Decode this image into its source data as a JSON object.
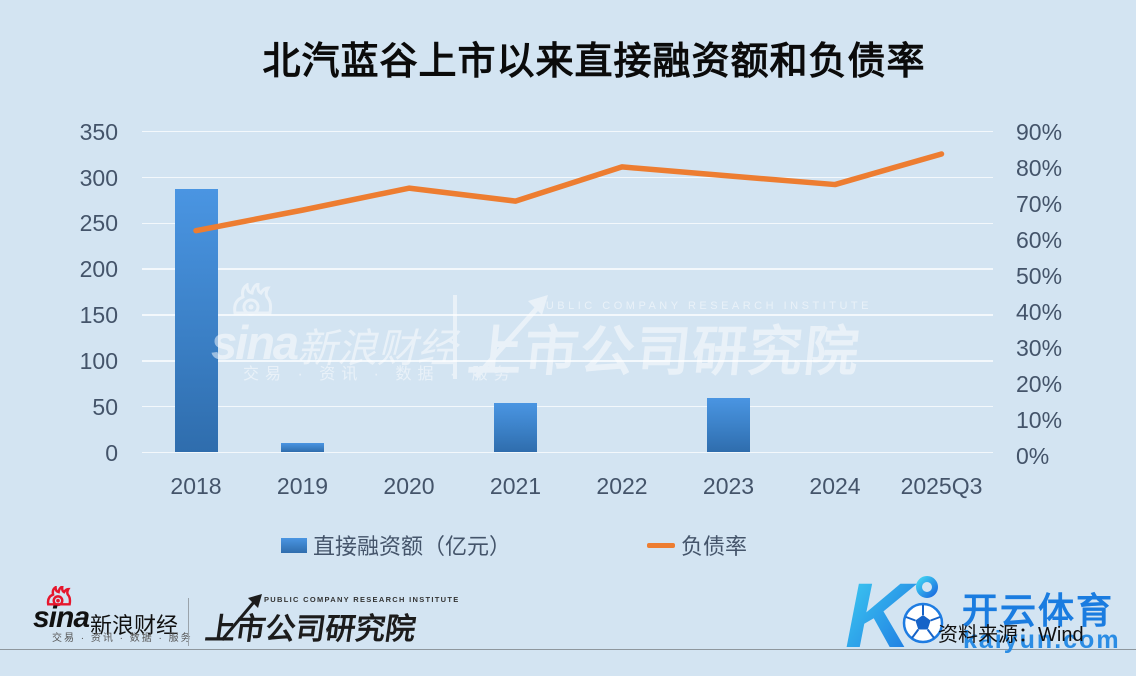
{
  "title": {
    "text": "北汽蓝谷上市以来直接融资额和负债率"
  },
  "chart_data": {
    "type": "combo",
    "categories": [
      "2018",
      "2019",
      "2020",
      "2021",
      "2022",
      "2023",
      "2024",
      "2025Q3"
    ],
    "series": [
      {
        "name": "直接融资额（亿元）",
        "chart": "bar",
        "axis": "left",
        "values": [
          287,
          10,
          0,
          54,
          0,
          60,
          0,
          0
        ]
      },
      {
        "name": "负债率",
        "chart": "line",
        "axis": "right",
        "unit": "%",
        "values": [
          62.6,
          68.3,
          74.4,
          70.8,
          80.3,
          77.8,
          75.4,
          83.9
        ]
      }
    ],
    "left_axis": {
      "min": 0,
      "max": 350,
      "step": 50,
      "ticks": [
        "350",
        "300",
        "250",
        "200",
        "150",
        "100",
        "50",
        "0"
      ]
    },
    "right_axis": {
      "min": 0,
      "max": 90,
      "step": 10,
      "ticks": [
        "90%",
        "80%",
        "70%",
        "60%",
        "50%",
        "40%",
        "30%",
        "20%",
        "10%",
        "0%"
      ]
    },
    "grid": true,
    "legend_position": "bottom",
    "colors": {
      "bar_top": "#4a95e2",
      "bar_bottom": "#2f6dad",
      "line": "#ed7d31",
      "axis_text": "#44546a",
      "background": "#d3e4f2"
    }
  },
  "watermark": {
    "sina_latin": "sina",
    "sina_cn": "新浪财经",
    "sina_services": "交易 · 资讯 · 数据 · 服务",
    "institute_en": "PUBLIC COMPANY RESEARCH INSTITUTE",
    "institute_cn": "上市公司研究院"
  },
  "footer": {
    "sina_latin": "sina",
    "sina_cn": "新浪财经",
    "sina_services": "交易 · 资讯 · 数据 · 服务",
    "institute_en": "PUBLIC COMPANY RESEARCH INSTITUTE",
    "institute_cn": "上市公司研究院",
    "kaiyun_cn": "开云体育",
    "kaiyun_domain": "kaiyun.com",
    "source": "资料来源：Wind"
  }
}
